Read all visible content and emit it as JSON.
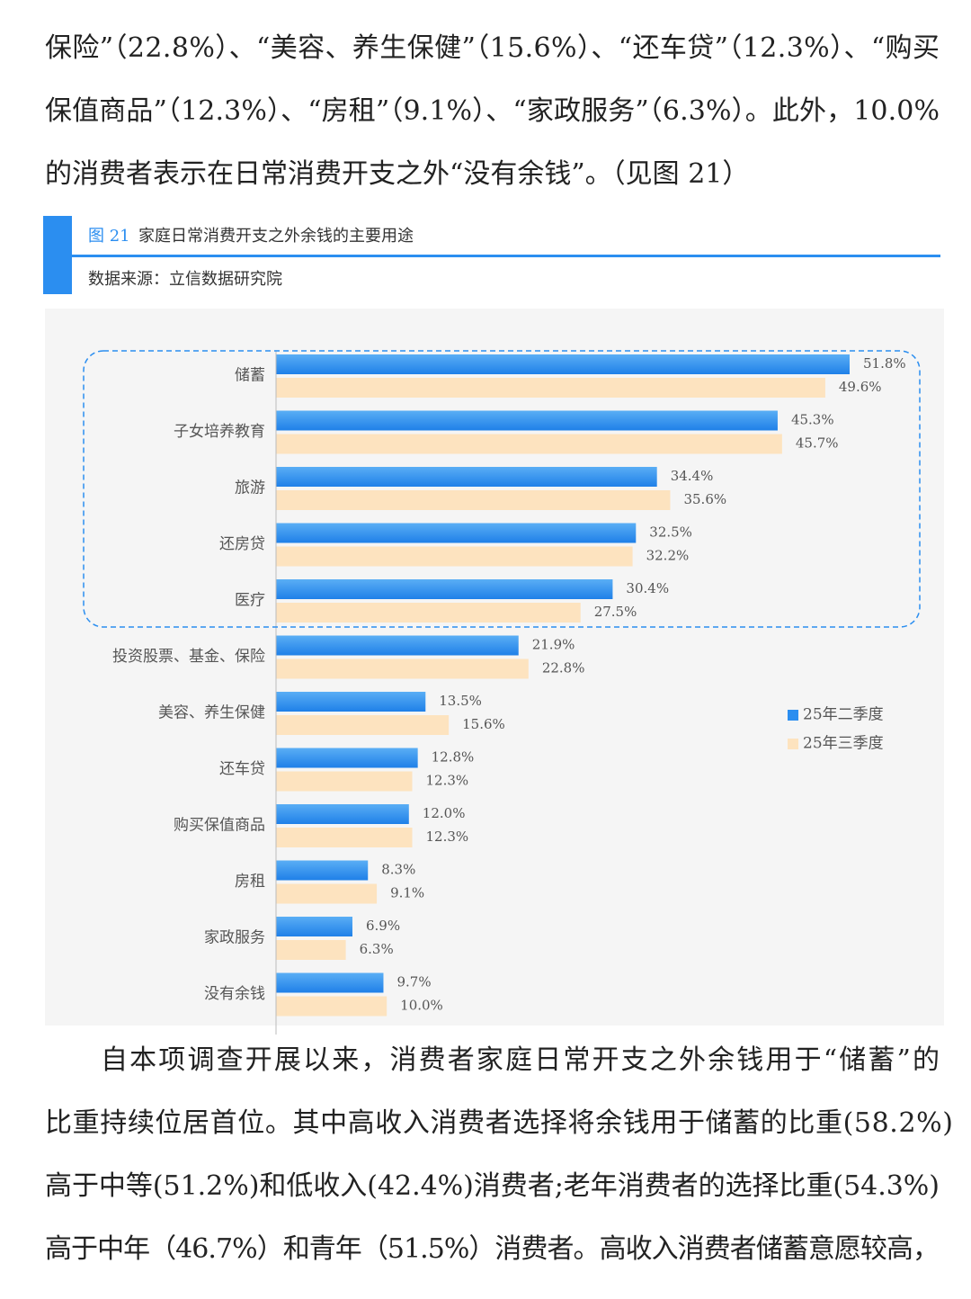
{
  "paragraph_top": {
    "lines": [
      "保险”（22.8%）、“美容、养生保健”（15.6%）、“还车贷”（12.3%）、“购买",
      "保值商品”（12.3%）、“房租”（9.1%）、“家政服务”（6.3%）。此外，10.0%",
      "的消费者表示在日常消费开支之外“没有余钱”。（见图 21）"
    ]
  },
  "figure": {
    "label": "图 21",
    "title": "家庭日常消费开支之外余钱的主要用途",
    "source": "数据来源：立信数据研究院"
  },
  "chart_data": {
    "type": "bar",
    "orientation": "horizontal",
    "categories": [
      "储蓄",
      "子女培养教育",
      "旅游",
      "还房贷",
      "医疗",
      "投资股票、基金、保险",
      "美容、养生保健",
      "还车贷",
      "购买保值商品",
      "房租",
      "家政服务",
      "没有余钱"
    ],
    "series": [
      {
        "name": "25年二季度",
        "color": "#2b8ef0",
        "values": [
          51.8,
          45.3,
          34.4,
          32.5,
          30.4,
          21.9,
          13.5,
          12.8,
          12.0,
          8.3,
          6.9,
          9.7
        ],
        "value_labels": [
          "51.8%",
          "45.3%",
          "34.4%",
          "32.5%",
          "30.4%",
          "21.9%",
          "13.5%",
          "12.8%",
          "12.0%",
          "8.3%",
          "6.9%",
          "9.7%"
        ]
      },
      {
        "name": "25年三季度",
        "color": "#fde3bf",
        "values": [
          49.6,
          45.7,
          35.6,
          32.2,
          27.5,
          22.8,
          15.6,
          12.3,
          12.3,
          9.1,
          6.3,
          10.0
        ],
        "value_labels": [
          "49.6%",
          "45.7%",
          "35.6%",
          "32.2%",
          "27.5%",
          "22.8%",
          "15.6%",
          "12.3%",
          "12.3%",
          "9.1%",
          "6.3%",
          "10.0%"
        ]
      }
    ]
  },
  "paragraph_bottom": {
    "lines": [
      "自本项调查开展以来，消费者家庭日常开支之外余钱用于“储蓄”的",
      "比重持续位居首位。其中高收入消费者选择将余钱用于储蓄的比重(58.2%)",
      "高于中等(51.2%)和低收入(42.4%)消费者;老年消费者的选择比重(54.3%)",
      "高于中年（46.7%）和青年（51.5%）消费者。高收入消费者储蓄意愿较高，"
    ]
  }
}
